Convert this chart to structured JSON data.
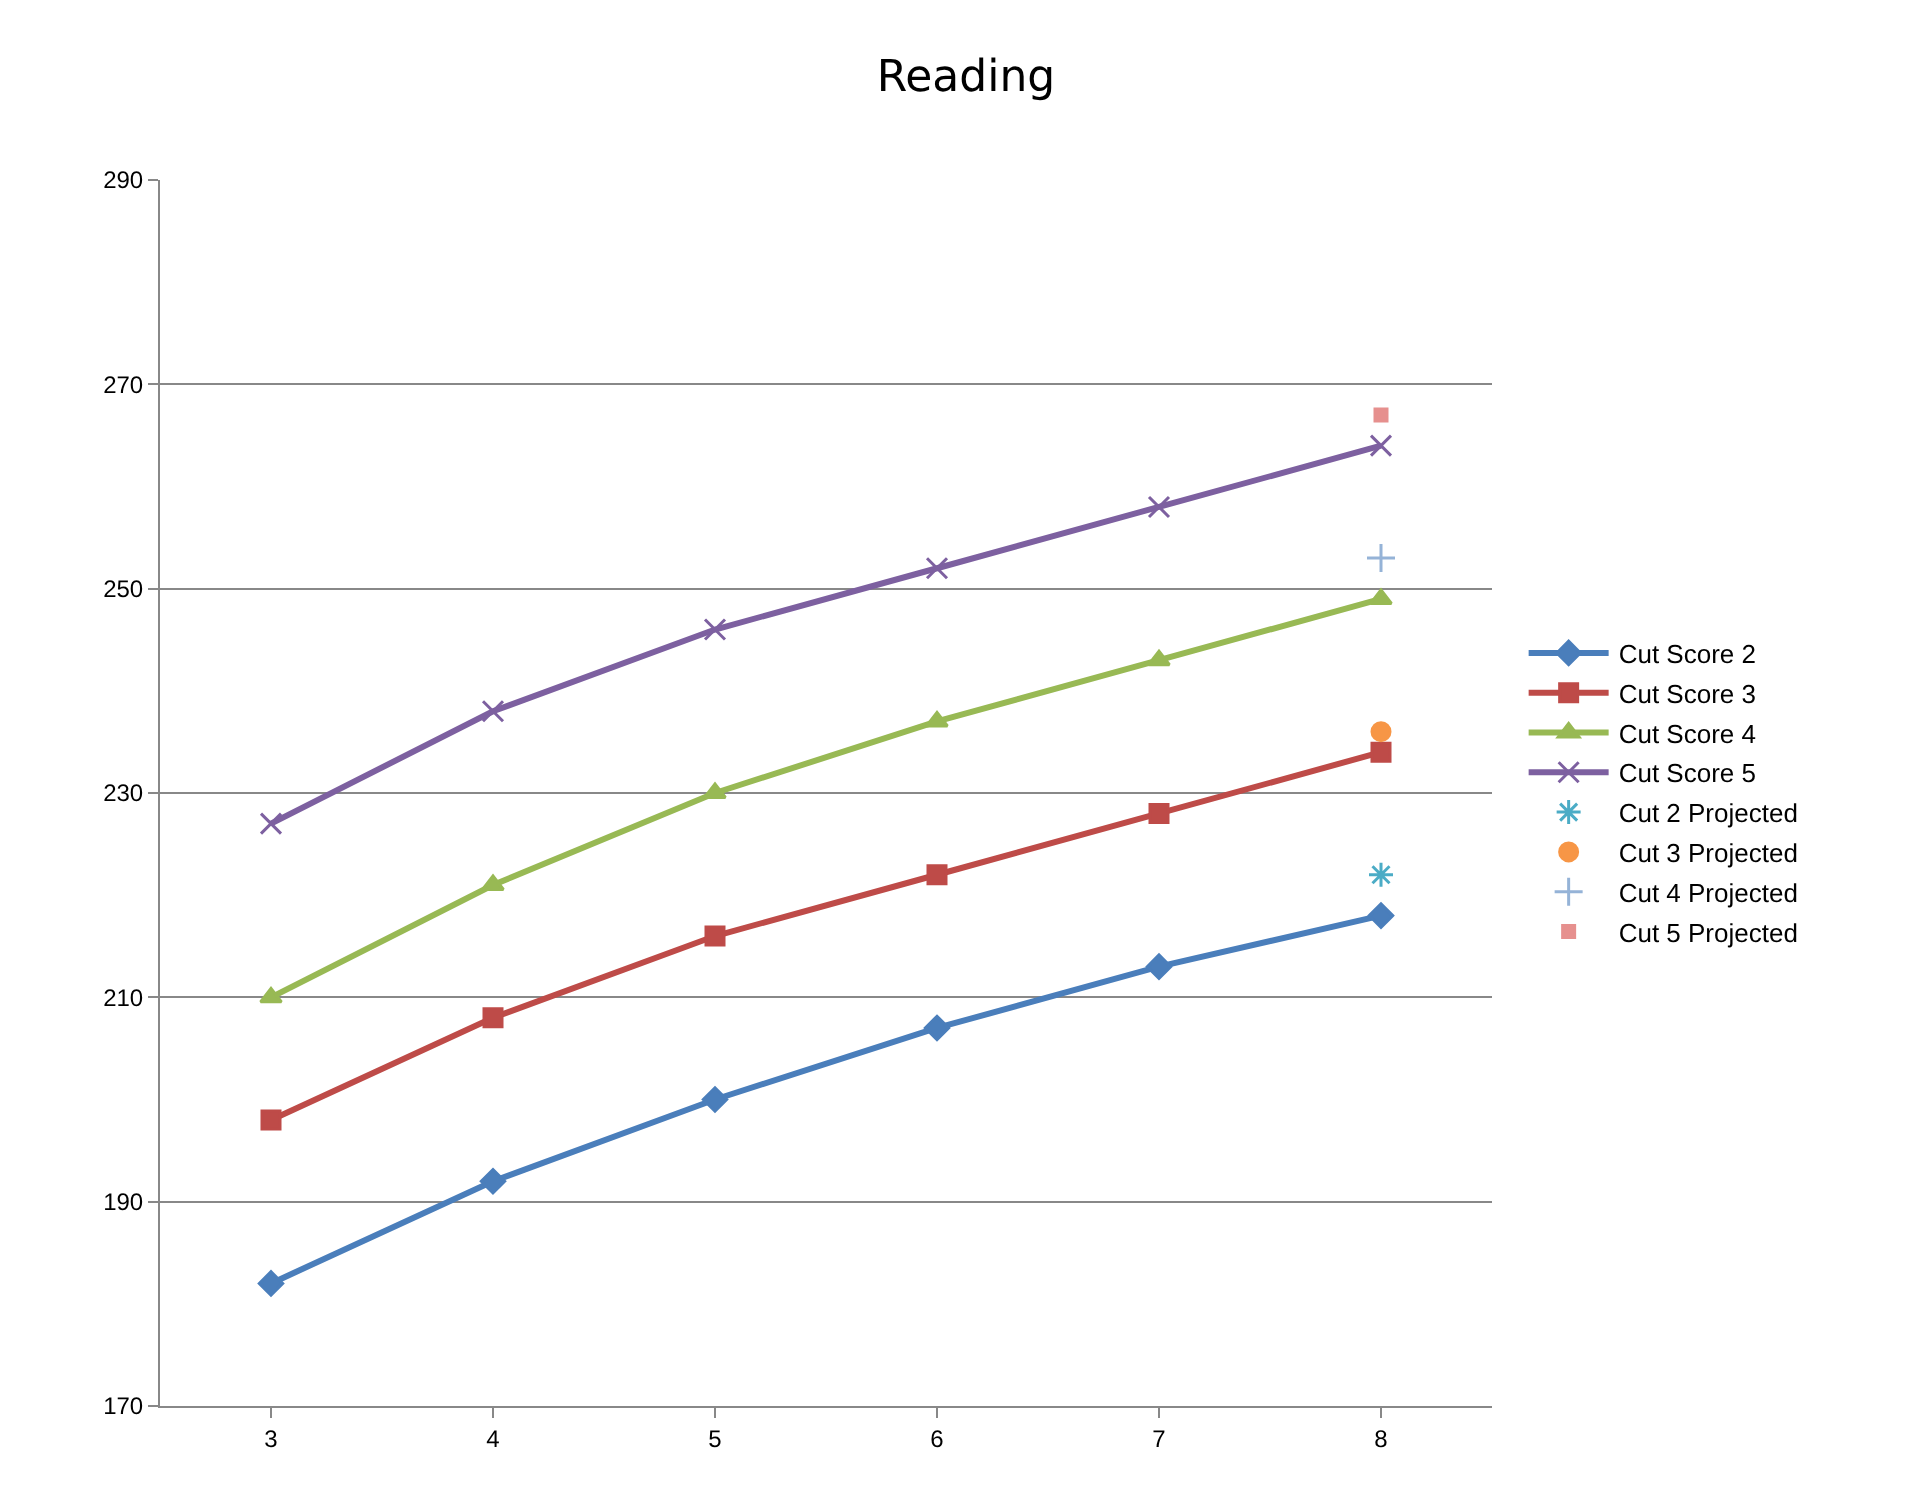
{
  "chart_data": {
    "type": "line",
    "title": "Reading",
    "categories": [
      "3",
      "4",
      "5",
      "6",
      "7",
      "8"
    ],
    "series": [
      {
        "name": "Cut Score 2",
        "color": "#4a7ebb",
        "marker": "diamond",
        "values": [
          182,
          192,
          200,
          207,
          213,
          218
        ]
      },
      {
        "name": "Cut Score 3",
        "color": "#be4b48",
        "marker": "square",
        "values": [
          198,
          208,
          216,
          222,
          228,
          234
        ]
      },
      {
        "name": "Cut Score 4",
        "color": "#98b954",
        "marker": "triangle",
        "values": [
          210,
          221,
          230,
          237,
          243,
          249
        ]
      },
      {
        "name": "Cut Score 5",
        "color": "#7d60a0",
        "marker": "cross",
        "values": [
          227,
          238,
          246,
          252,
          258,
          264
        ]
      },
      {
        "name": "Cut 2 Projected",
        "type": "scatter",
        "color": "#4bacc6",
        "marker": "cross",
        "x": [
          "8"
        ],
        "values": [
          222
        ]
      },
      {
        "name": "Cut 3 Projected",
        "type": "scatter",
        "color": "#f79646",
        "marker": "circle",
        "x": [
          "8"
        ],
        "values": [
          236
        ]
      },
      {
        "name": "Cut 4 Projected",
        "type": "scatter",
        "color": "#95b3d7",
        "marker": "plus",
        "x": [
          "8"
        ],
        "values": [
          253
        ]
      },
      {
        "name": "Cut 5 Projected",
        "type": "scatter",
        "color": "#e6908e",
        "marker": "square",
        "x": [
          "8"
        ],
        "values": [
          267
        ]
      }
    ],
    "ylim": [
      170,
      290
    ],
    "yticks": [
      170,
      190,
      210,
      230,
      250,
      270,
      290
    ],
    "grid": "y",
    "legend": "right"
  }
}
